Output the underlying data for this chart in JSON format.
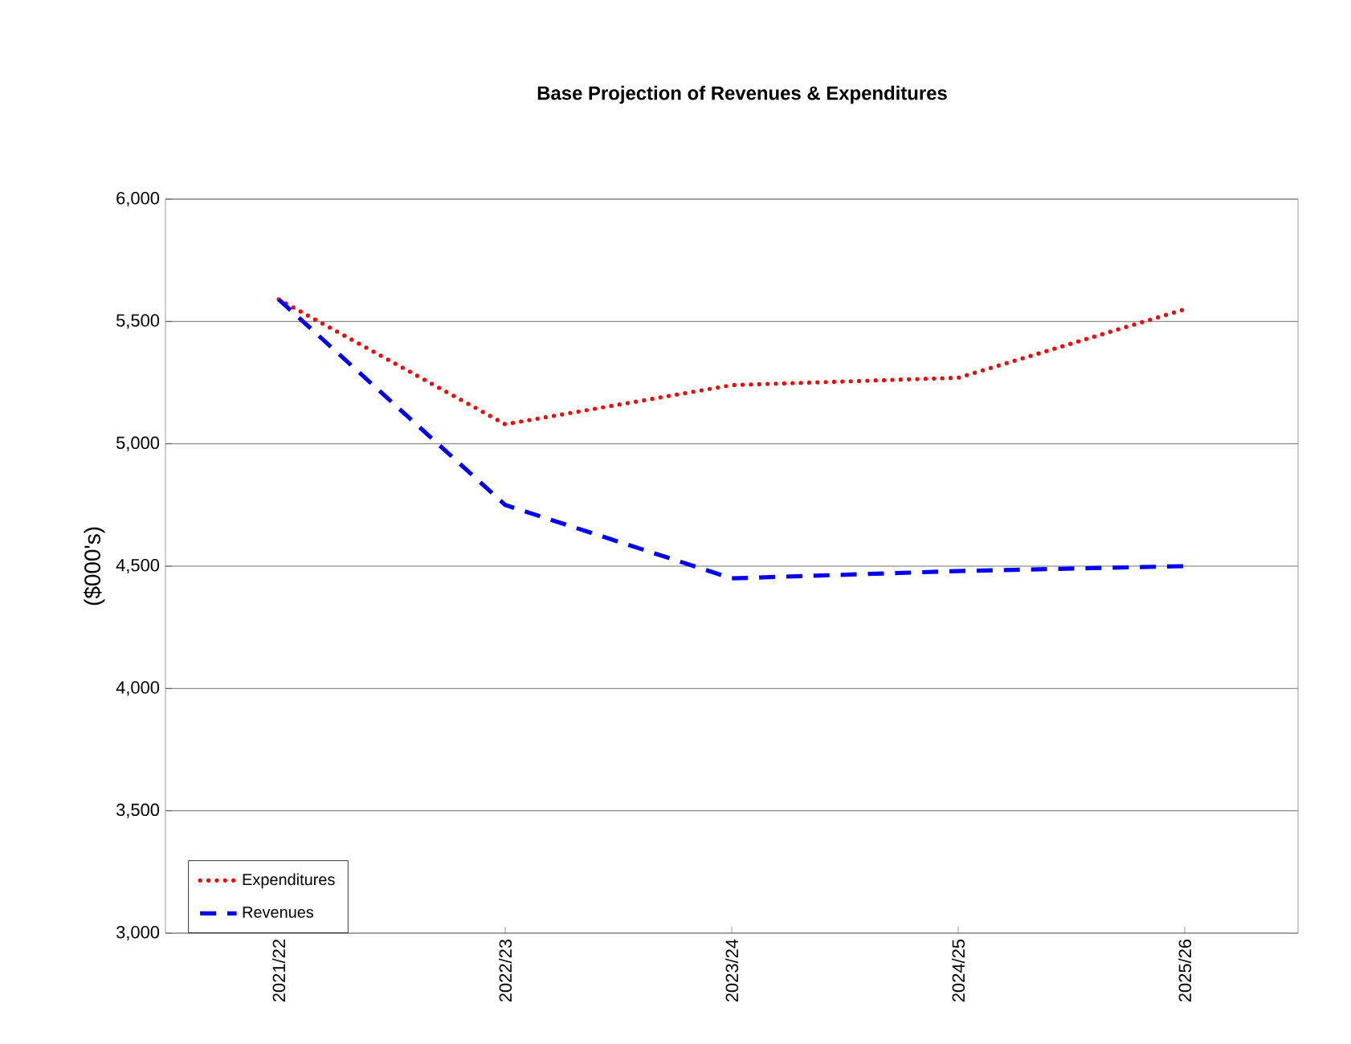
{
  "chart_data": {
    "type": "line",
    "title": "Base Projection of Revenues & Expenditures",
    "ylabel": "($000's)",
    "categories": [
      "2021/22",
      "2022/23",
      "2023/24",
      "2024/25",
      "2025/26"
    ],
    "series": [
      {
        "name": "Expenditures",
        "color": "#ff0000",
        "line_style": "dotted",
        "values": [
          5590,
          5080,
          5240,
          5270,
          5550
        ]
      },
      {
        "name": "Revenues",
        "color": "#0000ff",
        "line_style": "dashed",
        "values": [
          5590,
          4750,
          4450,
          4480,
          4500
        ]
      }
    ],
    "ylim": [
      3000,
      6000
    ],
    "yticks": [
      {
        "value": 3000,
        "label": "3,000"
      },
      {
        "value": 3500,
        "label": "3,500"
      },
      {
        "value": 4000,
        "label": "4,000"
      },
      {
        "value": 4500,
        "label": "4,500"
      },
      {
        "value": 5000,
        "label": "5,000"
      },
      {
        "value": 5500,
        "label": "5,500"
      },
      {
        "value": 6000,
        "label": "6,000"
      }
    ],
    "grid": "y",
    "legend": "bottom left"
  }
}
